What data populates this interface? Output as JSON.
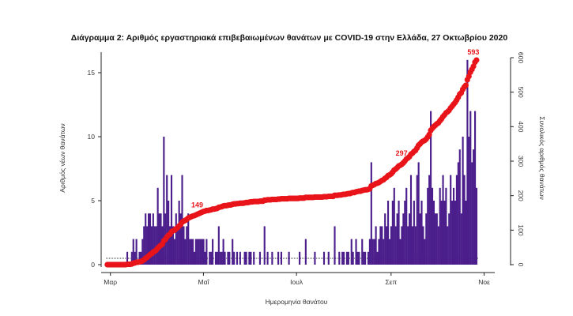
{
  "chart_data": {
    "type": "bar+line",
    "title": "Διάγραμμα 2: Αριθμός εργαστηριακά επιβεβαιωμένων θανάτων με COVID-19 στην Ελλάδα, 27 Οκτωβρίου 2020",
    "xlabel": "Ημερομηνία θανάτου",
    "ylabel": "Αριθμός νέων θανάτων",
    "y2label": "Συνολικός αριθμός θανάτων",
    "start_date": "2020-03-11",
    "end_date": "2020-10-27",
    "x_ticks": [
      {
        "label": "Μαρ",
        "day_offset": -10
      },
      {
        "label": "Μαΐ",
        "day_offset": 51
      },
      {
        "label": "Ιουλ",
        "day_offset": 112
      },
      {
        "label": "Σεπ",
        "day_offset": 174
      },
      {
        "label": "Νοε",
        "day_offset": 235
      }
    ],
    "y_ticks": [
      0,
      5,
      10,
      15
    ],
    "ylim": [
      0,
      16.5
    ],
    "y2_ticks": [
      0,
      100,
      200,
      300,
      400,
      500,
      600
    ],
    "y2lim": [
      0,
      600
    ],
    "series": [
      {
        "name": "Νέοι θάνατοι",
        "type": "bar",
        "color": "#4b1e8c",
        "values": [
          0,
          1,
          0,
          0,
          1,
          2,
          1,
          2,
          0,
          1,
          1,
          2,
          3,
          4,
          3,
          4,
          4,
          3,
          4,
          3,
          3,
          6,
          4,
          4,
          3,
          10,
          4,
          7,
          5,
          3,
          7,
          3,
          2,
          4,
          3,
          5,
          4,
          7,
          3,
          2,
          3,
          4,
          2,
          2,
          2,
          1,
          2,
          2,
          2,
          2,
          2,
          2,
          1,
          2,
          0,
          1,
          1,
          2,
          0,
          1,
          1,
          3,
          1,
          1,
          2,
          1,
          0,
          1,
          1,
          0,
          2,
          1,
          0,
          1,
          0,
          1,
          0,
          0,
          1,
          1,
          0,
          1,
          1,
          0,
          1,
          0,
          0,
          0,
          1,
          0,
          0,
          3,
          0,
          1,
          0,
          0,
          1,
          0,
          0,
          0,
          1,
          0,
          1,
          0,
          0,
          0,
          0,
          1,
          0,
          0,
          0,
          0,
          0,
          0,
          1,
          0,
          0,
          0,
          2,
          0,
          0,
          0,
          0,
          0,
          1,
          0,
          0,
          0,
          0,
          0,
          1,
          0,
          0,
          1,
          0,
          0,
          0,
          3,
          0,
          0,
          1,
          0,
          1,
          1,
          0,
          1,
          1,
          0,
          2,
          1,
          0,
          2,
          1,
          1,
          0,
          2,
          1,
          1,
          0,
          1,
          2,
          8,
          2,
          2,
          3,
          1,
          2,
          3,
          3,
          2,
          4,
          3,
          5,
          2,
          3,
          5,
          6,
          3,
          4,
          5,
          2,
          3,
          4,
          5,
          6,
          3,
          4,
          7,
          3,
          5,
          3,
          7,
          8,
          4,
          5,
          3,
          2,
          4,
          6,
          7,
          12,
          6,
          5,
          4,
          4,
          3,
          6,
          5,
          7,
          5,
          6,
          3,
          4,
          7,
          5,
          6,
          5,
          7,
          8,
          9,
          4,
          10,
          7,
          5,
          16,
          10,
          12,
          8,
          9,
          12,
          6
        ]
      },
      {
        "name": "Συνολικός αριθμός θανάτων",
        "type": "line",
        "color": "#e8141a",
        "axis": "right",
        "cumulative": true
      }
    ],
    "annotations": [
      {
        "text": "149",
        "value": 149
      },
      {
        "text": "297",
        "value": 297
      },
      {
        "text": "593",
        "value": 593
      }
    ]
  }
}
